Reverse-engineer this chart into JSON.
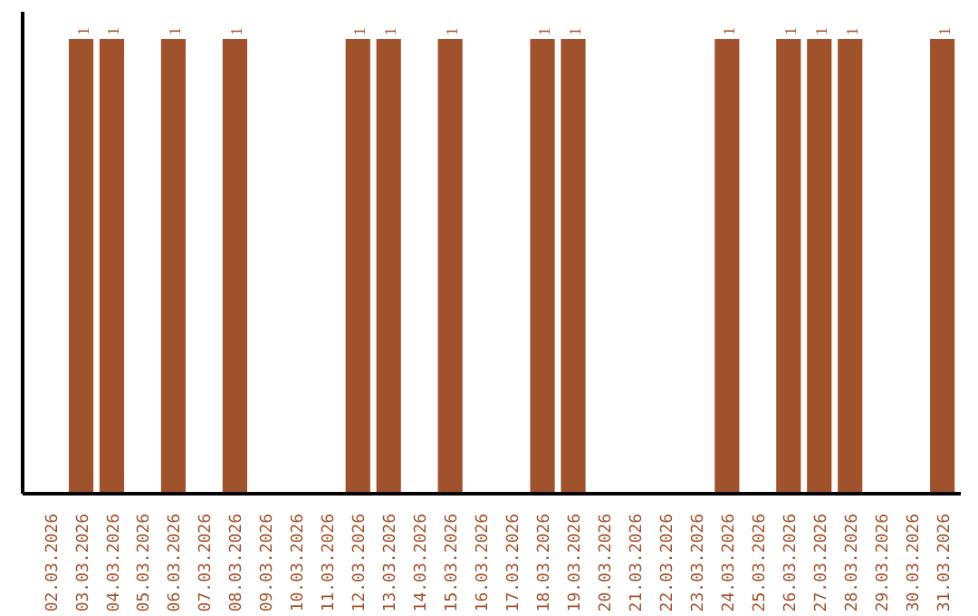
{
  "chart_data": {
    "type": "bar",
    "categories": [
      "02.03.2026",
      "03.03.2026",
      "04.03.2026",
      "05.03.2026",
      "06.03.2026",
      "07.03.2026",
      "08.03.2026",
      "09.03.2026",
      "10.03.2026",
      "11.03.2026",
      "12.03.2026",
      "13.03.2026",
      "14.03.2026",
      "15.03.2026",
      "16.03.2026",
      "17.03.2026",
      "18.03.2026",
      "19.03.2026",
      "20.03.2026",
      "21.03.2026",
      "22.03.2026",
      "23.03.2026",
      "24.03.2026",
      "25.03.2026",
      "26.03.2026",
      "27.03.2026",
      "28.03.2026",
      "29.03.2026",
      "30.03.2026",
      "31.03.2026"
    ],
    "values": [
      0,
      1,
      1,
      0,
      1,
      0,
      1,
      0,
      0,
      0,
      1,
      1,
      0,
      1,
      0,
      0,
      1,
      1,
      0,
      0,
      0,
      0,
      1,
      0,
      1,
      1,
      1,
      0,
      0,
      1
    ],
    "value_labels": [
      null,
      "1",
      "1",
      null,
      "1",
      null,
      "1",
      null,
      null,
      null,
      "1",
      "1",
      null,
      "1",
      null,
      null,
      "1",
      "1",
      null,
      null,
      null,
      null,
      "1",
      null,
      "1",
      "1",
      "1",
      null,
      null,
      "1"
    ],
    "color": "#a0522d",
    "grid": false
  }
}
